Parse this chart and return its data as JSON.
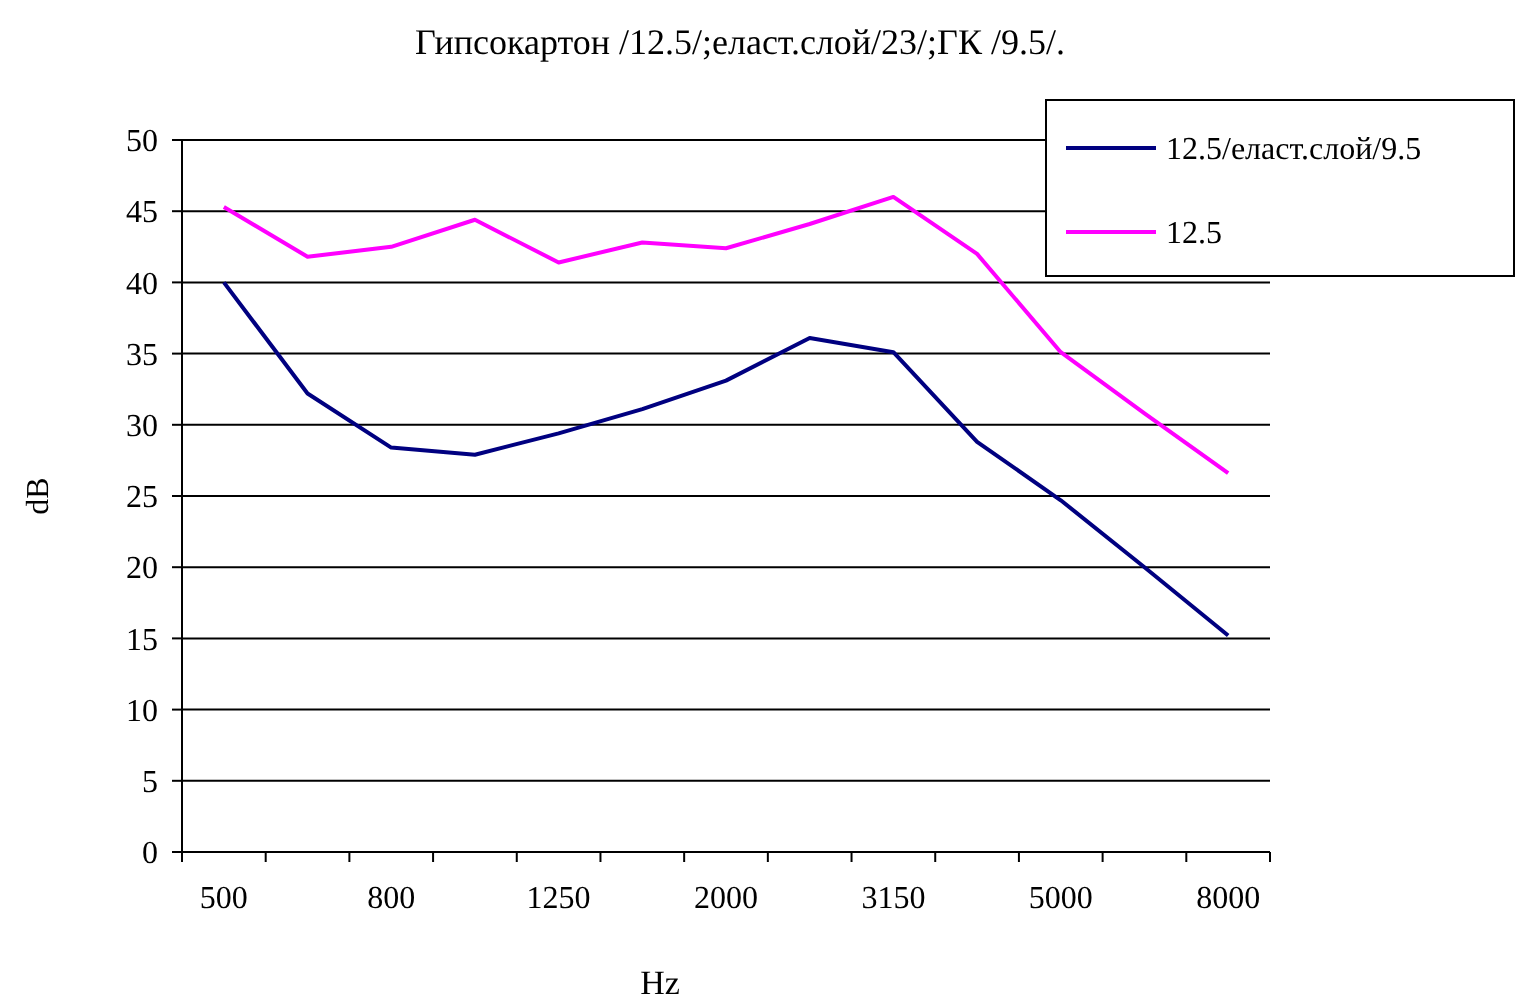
{
  "chart_data": {
    "type": "line",
    "title": "Гипсокартон /12.5/;еласт.слой/23/;ГК /9.5/.",
    "xlabel": "Hz",
    "ylabel": "dB",
    "categories": [
      "500",
      null,
      "800",
      null,
      "1250",
      null,
      "2000",
      null,
      "3150",
      null,
      "5000",
      null,
      "8000"
    ],
    "series": [
      {
        "name": "12.5/еласт.слой/9.5",
        "color": "#000080",
        "values": [
          40.0,
          32.2,
          28.4,
          27.9,
          29.4,
          31.1,
          33.1,
          36.1,
          35.1,
          28.8,
          24.7,
          20.0,
          15.2
        ]
      },
      {
        "name": "12.5",
        "color": "#ff00ff",
        "values": [
          45.3,
          41.8,
          42.5,
          44.4,
          41.4,
          42.8,
          42.4,
          44.1,
          46.0,
          42.0,
          35.1,
          30.8,
          26.6
        ]
      }
    ],
    "ylim": [
      0,
      50
    ],
    "yticks": [
      0,
      5,
      10,
      15,
      20,
      25,
      30,
      35,
      40,
      45,
      50
    ],
    "grid": "y",
    "legend": "top right",
    "marker": "none",
    "line_style": "solid"
  }
}
